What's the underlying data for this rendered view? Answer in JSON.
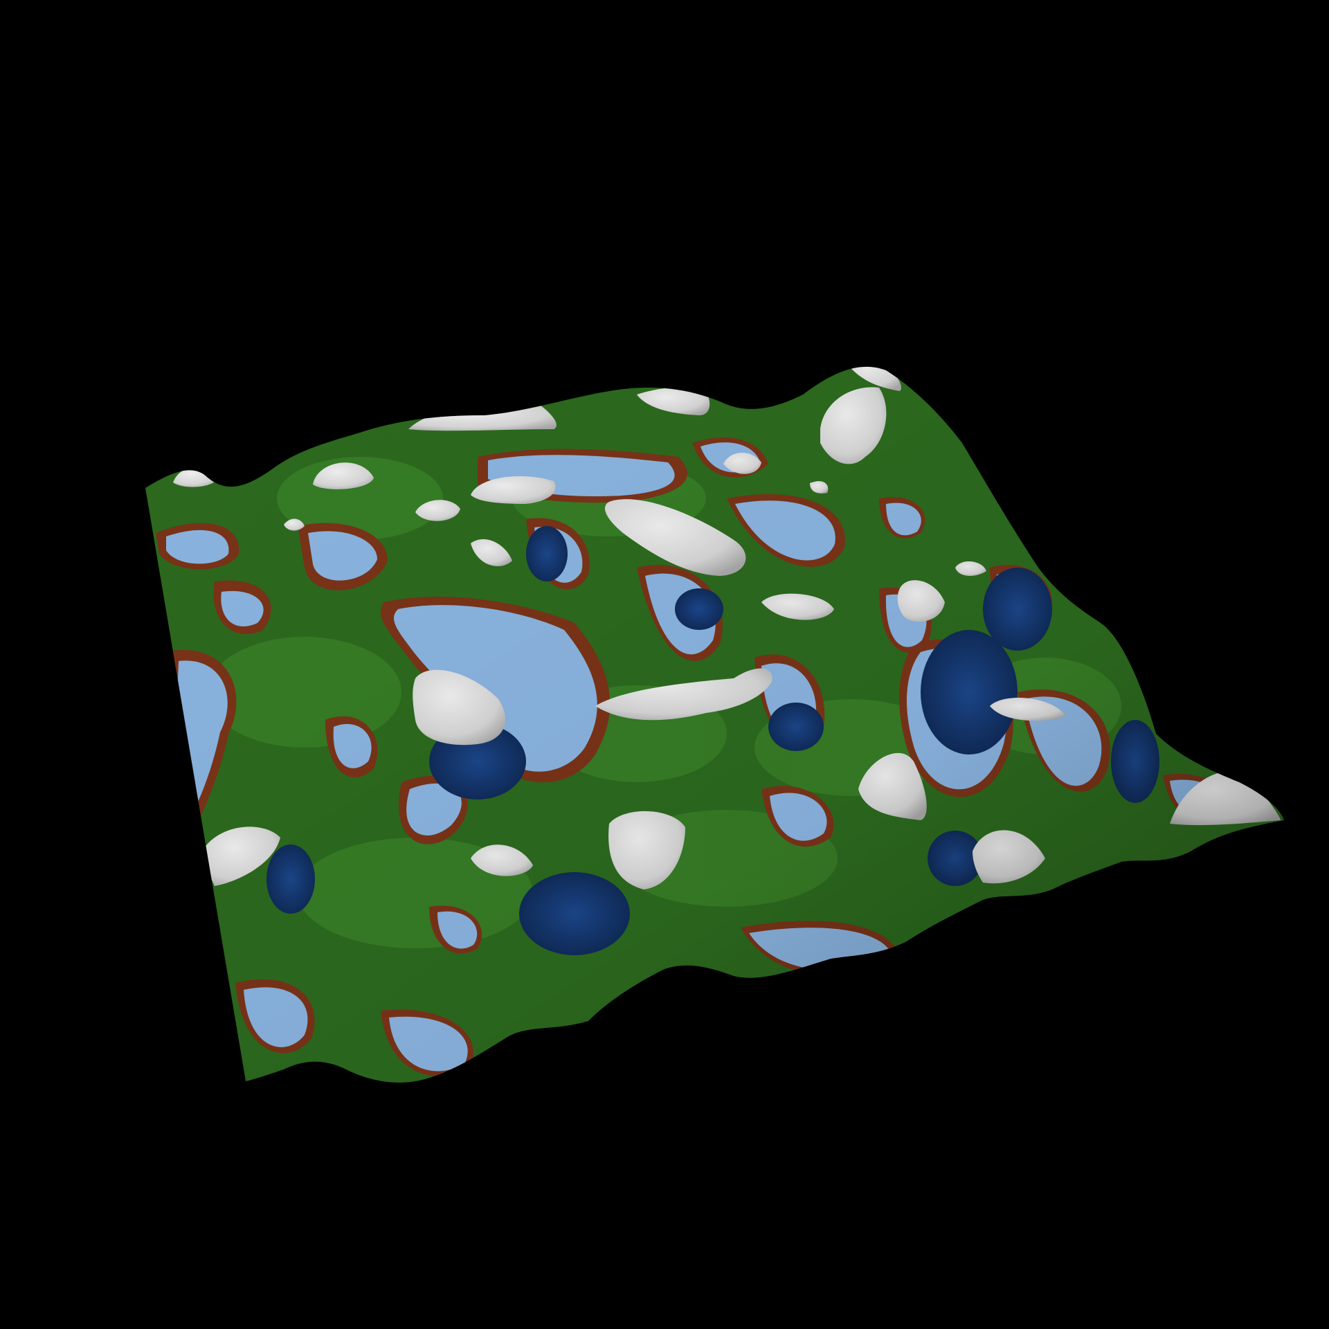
{
  "scene": {
    "subject": "terrain",
    "colors": {
      "background": "#000000",
      "water_light": "#8ab4e0",
      "water_deep": "#1f4f9a",
      "shore": "#7a3318",
      "grass": "#2c6a1e",
      "grass_light": "#3f8a2c",
      "snow": "#d8d8d8"
    }
  }
}
